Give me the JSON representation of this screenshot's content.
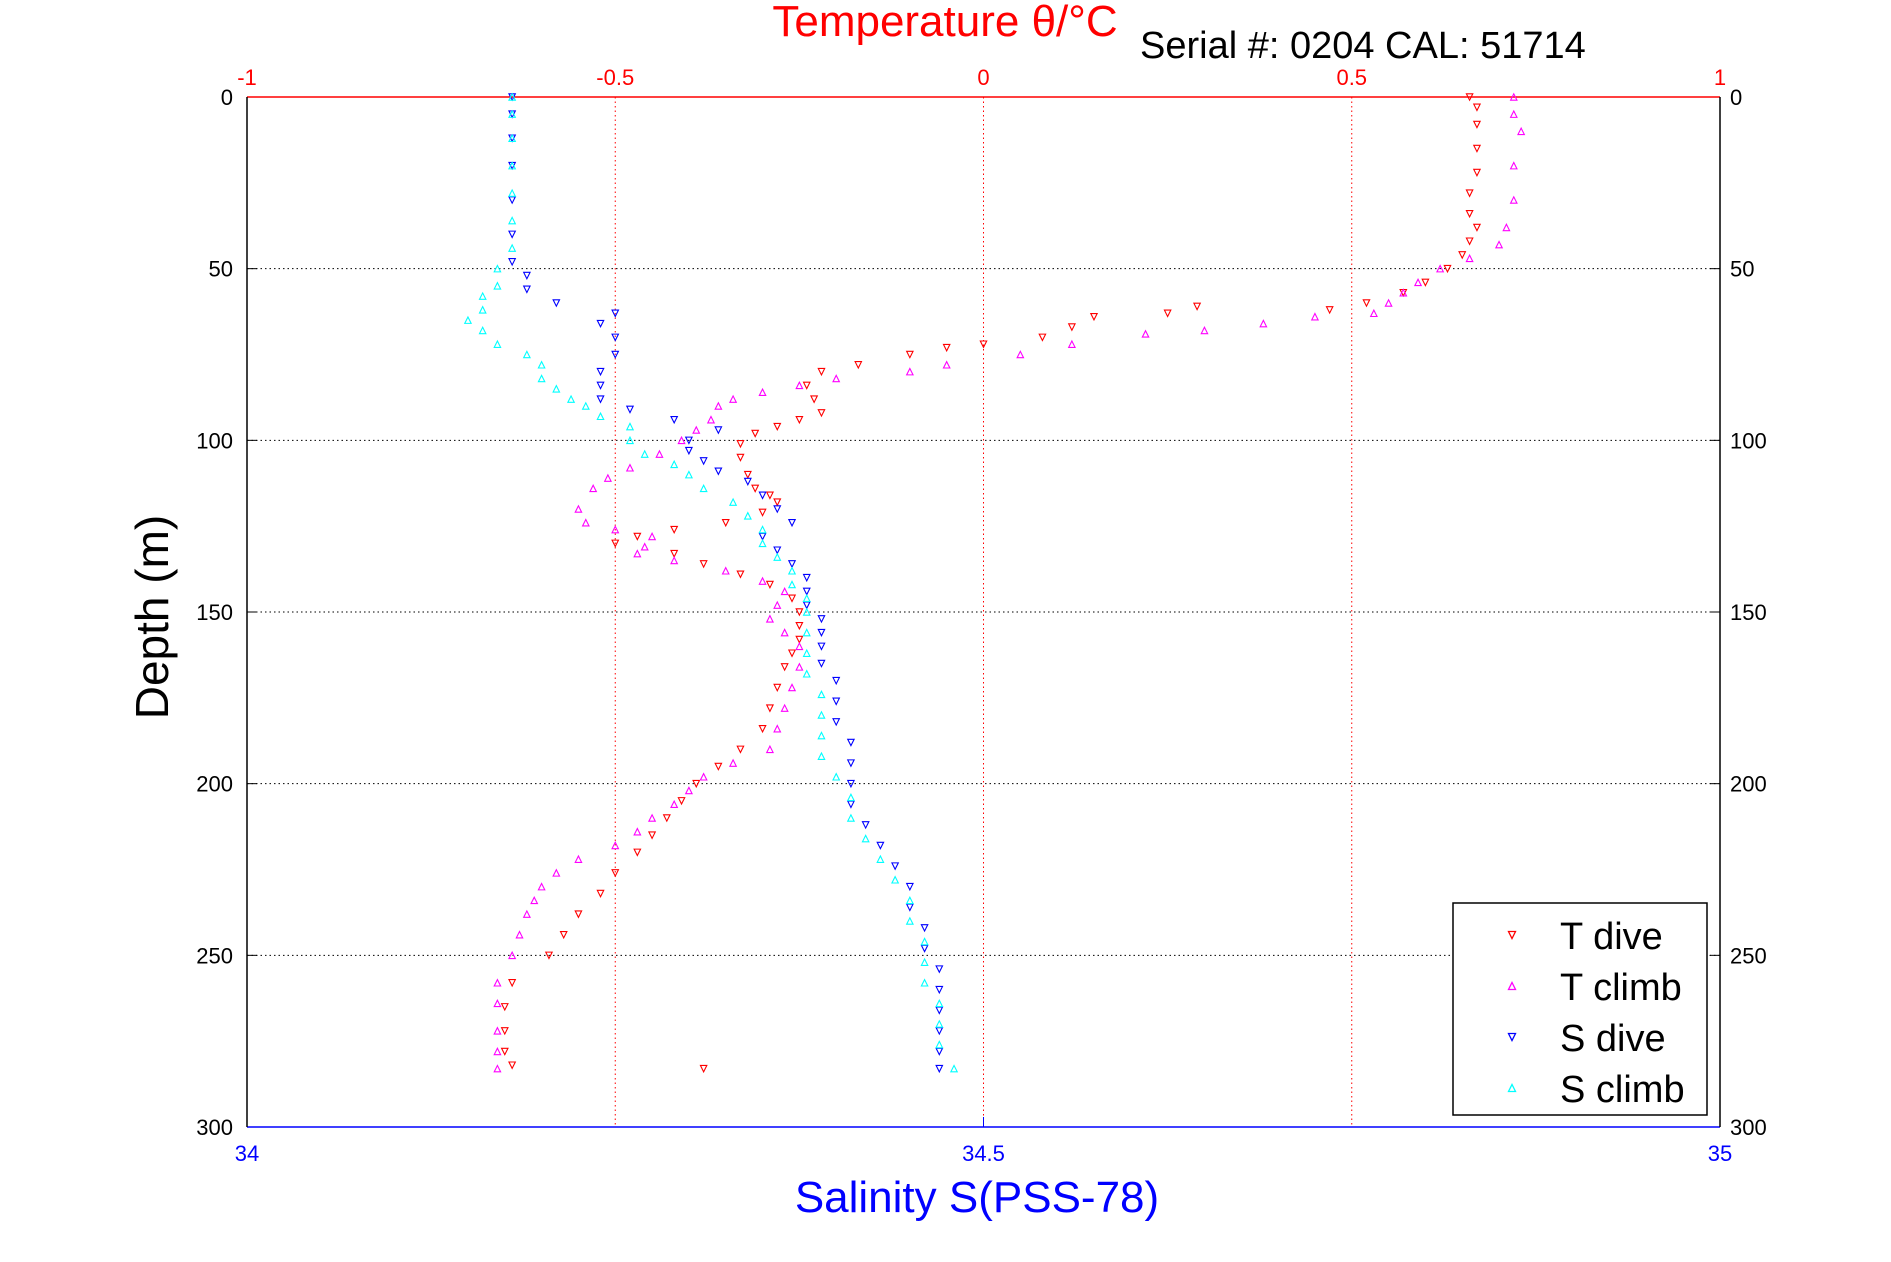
{
  "chart_data": {
    "type": "scatter",
    "title": "Temperature θ/°C",
    "annotation": "Serial #: 0204  CAL: 51714",
    "ylabel": "Depth (m)",
    "xlabel_bottom": "Salinity S(PSS-78)",
    "ylim": [
      0,
      300
    ],
    "y_reversed": true,
    "xlim_temperature": [
      -1,
      1
    ],
    "xlim_salinity": [
      34,
      35
    ],
    "grid": true,
    "legend_position": "bottom-right",
    "y_ticks": [
      "0",
      "50",
      "100",
      "150",
      "200",
      "250",
      "300"
    ],
    "temperature_ticks": [
      "-1",
      "-0.5",
      "0",
      "0.5",
      "1"
    ],
    "salinity_ticks": [
      "34",
      "34.5",
      "35"
    ],
    "colors": {
      "temperature_axis": "#ff0000",
      "salinity_axis": "#0000ff",
      "t_dive": "#ff0000",
      "t_climb": "#ff00ff",
      "s_dive": "#0000ff",
      "s_climb": "#00ffff",
      "grid": "#000000"
    },
    "series": [
      {
        "name": "T dive",
        "axis": "temperature",
        "marker": "triangle-down",
        "points": [
          [
            0.66,
            0
          ],
          [
            0.67,
            3
          ],
          [
            0.67,
            8
          ],
          [
            0.67,
            15
          ],
          [
            0.67,
            22
          ],
          [
            0.66,
            28
          ],
          [
            0.66,
            34
          ],
          [
            0.67,
            38
          ],
          [
            0.66,
            42
          ],
          [
            0.65,
            46
          ],
          [
            0.63,
            50
          ],
          [
            0.6,
            54
          ],
          [
            0.57,
            57
          ],
          [
            0.52,
            60
          ],
          [
            0.47,
            62
          ],
          [
            0.29,
            61
          ],
          [
            0.25,
            63
          ],
          [
            0.15,
            64
          ],
          [
            0.12,
            67
          ],
          [
            0.08,
            70
          ],
          [
            0.0,
            72
          ],
          [
            -0.05,
            73
          ],
          [
            -0.1,
            75
          ],
          [
            -0.17,
            78
          ],
          [
            -0.22,
            80
          ],
          [
            -0.24,
            84
          ],
          [
            -0.23,
            88
          ],
          [
            -0.22,
            92
          ],
          [
            -0.25,
            94
          ],
          [
            -0.28,
            96
          ],
          [
            -0.31,
            98
          ],
          [
            -0.33,
            101
          ],
          [
            -0.33,
            105
          ],
          [
            -0.32,
            110
          ],
          [
            -0.31,
            114
          ],
          [
            -0.29,
            116
          ],
          [
            -0.28,
            118
          ],
          [
            -0.3,
            121
          ],
          [
            -0.35,
            124
          ],
          [
            -0.42,
            126
          ],
          [
            -0.47,
            128
          ],
          [
            -0.5,
            130
          ],
          [
            -0.42,
            133
          ],
          [
            -0.38,
            136
          ],
          [
            -0.33,
            139
          ],
          [
            -0.29,
            142
          ],
          [
            -0.26,
            146
          ],
          [
            -0.25,
            150
          ],
          [
            -0.25,
            154
          ],
          [
            -0.25,
            158
          ],
          [
            -0.26,
            162
          ],
          [
            -0.27,
            166
          ],
          [
            -0.28,
            172
          ],
          [
            -0.29,
            178
          ],
          [
            -0.3,
            184
          ],
          [
            -0.33,
            190
          ],
          [
            -0.36,
            195
          ],
          [
            -0.39,
            200
          ],
          [
            -0.41,
            205
          ],
          [
            -0.43,
            210
          ],
          [
            -0.45,
            215
          ],
          [
            -0.47,
            220
          ],
          [
            -0.5,
            226
          ],
          [
            -0.52,
            232
          ],
          [
            -0.55,
            238
          ],
          [
            -0.57,
            244
          ],
          [
            -0.59,
            250
          ],
          [
            -0.64,
            258
          ],
          [
            -0.65,
            265
          ],
          [
            -0.65,
            272
          ],
          [
            -0.65,
            278
          ],
          [
            -0.64,
            282
          ],
          [
            -0.38,
            283
          ]
        ]
      },
      {
        "name": "T climb",
        "axis": "temperature",
        "marker": "triangle-up",
        "points": [
          [
            0.72,
            0
          ],
          [
            0.72,
            5
          ],
          [
            0.73,
            10
          ],
          [
            0.72,
            20
          ],
          [
            0.72,
            30
          ],
          [
            0.71,
            38
          ],
          [
            0.7,
            43
          ],
          [
            0.66,
            47
          ],
          [
            0.62,
            50
          ],
          [
            0.59,
            54
          ],
          [
            0.57,
            57
          ],
          [
            0.55,
            60
          ],
          [
            0.53,
            63
          ],
          [
            0.45,
            64
          ],
          [
            0.38,
            66
          ],
          [
            0.3,
            68
          ],
          [
            0.22,
            69
          ],
          [
            0.12,
            72
          ],
          [
            0.05,
            75
          ],
          [
            -0.05,
            78
          ],
          [
            -0.1,
            80
          ],
          [
            -0.2,
            82
          ],
          [
            -0.25,
            84
          ],
          [
            -0.3,
            86
          ],
          [
            -0.34,
            88
          ],
          [
            -0.36,
            90
          ],
          [
            -0.37,
            94
          ],
          [
            -0.39,
            97
          ],
          [
            -0.41,
            100
          ],
          [
            -0.44,
            104
          ],
          [
            -0.48,
            108
          ],
          [
            -0.51,
            111
          ],
          [
            -0.53,
            114
          ],
          [
            -0.55,
            120
          ],
          [
            -0.54,
            124
          ],
          [
            -0.5,
            126
          ],
          [
            -0.45,
            128
          ],
          [
            -0.46,
            131
          ],
          [
            -0.47,
            133
          ],
          [
            -0.42,
            135
          ],
          [
            -0.35,
            138
          ],
          [
            -0.3,
            141
          ],
          [
            -0.27,
            144
          ],
          [
            -0.28,
            148
          ],
          [
            -0.29,
            152
          ],
          [
            -0.27,
            156
          ],
          [
            -0.25,
            160
          ],
          [
            -0.25,
            166
          ],
          [
            -0.26,
            172
          ],
          [
            -0.27,
            178
          ],
          [
            -0.28,
            184
          ],
          [
            -0.29,
            190
          ],
          [
            -0.34,
            194
          ],
          [
            -0.38,
            198
          ],
          [
            -0.4,
            202
          ],
          [
            -0.42,
            206
          ],
          [
            -0.45,
            210
          ],
          [
            -0.47,
            214
          ],
          [
            -0.5,
            218
          ],
          [
            -0.55,
            222
          ],
          [
            -0.58,
            226
          ],
          [
            -0.6,
            230
          ],
          [
            -0.61,
            234
          ],
          [
            -0.62,
            238
          ],
          [
            -0.63,
            244
          ],
          [
            -0.64,
            250
          ],
          [
            -0.66,
            258
          ],
          [
            -0.66,
            264
          ],
          [
            -0.66,
            272
          ],
          [
            -0.66,
            278
          ],
          [
            -0.66,
            283
          ]
        ]
      },
      {
        "name": "S dive",
        "axis": "salinity",
        "marker": "triangle-down",
        "points": [
          [
            34.18,
            0
          ],
          [
            34.18,
            5
          ],
          [
            34.18,
            12
          ],
          [
            34.18,
            20
          ],
          [
            34.18,
            30
          ],
          [
            34.18,
            40
          ],
          [
            34.18,
            48
          ],
          [
            34.19,
            52
          ],
          [
            34.19,
            56
          ],
          [
            34.21,
            60
          ],
          [
            34.25,
            63
          ],
          [
            34.24,
            66
          ],
          [
            34.25,
            70
          ],
          [
            34.25,
            75
          ],
          [
            34.24,
            80
          ],
          [
            34.24,
            84
          ],
          [
            34.24,
            88
          ],
          [
            34.26,
            91
          ],
          [
            34.29,
            94
          ],
          [
            34.32,
            97
          ],
          [
            34.3,
            100
          ],
          [
            34.3,
            103
          ],
          [
            34.31,
            106
          ],
          [
            34.32,
            109
          ],
          [
            34.34,
            112
          ],
          [
            34.35,
            116
          ],
          [
            34.36,
            120
          ],
          [
            34.37,
            124
          ],
          [
            34.35,
            128
          ],
          [
            34.36,
            132
          ],
          [
            34.37,
            136
          ],
          [
            34.38,
            140
          ],
          [
            34.38,
            144
          ],
          [
            34.38,
            148
          ],
          [
            34.39,
            152
          ],
          [
            34.39,
            156
          ],
          [
            34.39,
            160
          ],
          [
            34.39,
            165
          ],
          [
            34.4,
            170
          ],
          [
            34.4,
            176
          ],
          [
            34.4,
            182
          ],
          [
            34.41,
            188
          ],
          [
            34.41,
            194
          ],
          [
            34.41,
            200
          ],
          [
            34.41,
            206
          ],
          [
            34.42,
            212
          ],
          [
            34.43,
            218
          ],
          [
            34.44,
            224
          ],
          [
            34.45,
            230
          ],
          [
            34.45,
            236
          ],
          [
            34.46,
            242
          ],
          [
            34.46,
            248
          ],
          [
            34.47,
            254
          ],
          [
            34.47,
            260
          ],
          [
            34.47,
            266
          ],
          [
            34.47,
            272
          ],
          [
            34.47,
            278
          ],
          [
            34.47,
            283
          ]
        ]
      },
      {
        "name": "S climb",
        "axis": "salinity",
        "marker": "triangle-up",
        "points": [
          [
            34.18,
            0
          ],
          [
            34.18,
            5
          ],
          [
            34.18,
            12
          ],
          [
            34.18,
            20
          ],
          [
            34.18,
            28
          ],
          [
            34.18,
            36
          ],
          [
            34.18,
            44
          ],
          [
            34.17,
            50
          ],
          [
            34.17,
            55
          ],
          [
            34.16,
            58
          ],
          [
            34.16,
            62
          ],
          [
            34.15,
            65
          ],
          [
            34.16,
            68
          ],
          [
            34.17,
            72
          ],
          [
            34.19,
            75
          ],
          [
            34.2,
            78
          ],
          [
            34.2,
            82
          ],
          [
            34.21,
            85
          ],
          [
            34.22,
            88
          ],
          [
            34.23,
            90
          ],
          [
            34.24,
            93
          ],
          [
            34.26,
            96
          ],
          [
            34.26,
            100
          ],
          [
            34.27,
            104
          ],
          [
            34.29,
            107
          ],
          [
            34.3,
            110
          ],
          [
            34.31,
            114
          ],
          [
            34.33,
            118
          ],
          [
            34.34,
            122
          ],
          [
            34.35,
            126
          ],
          [
            34.35,
            130
          ],
          [
            34.36,
            134
          ],
          [
            34.37,
            138
          ],
          [
            34.37,
            142
          ],
          [
            34.38,
            146
          ],
          [
            34.38,
            150
          ],
          [
            34.38,
            156
          ],
          [
            34.38,
            162
          ],
          [
            34.38,
            168
          ],
          [
            34.39,
            174
          ],
          [
            34.39,
            180
          ],
          [
            34.39,
            186
          ],
          [
            34.39,
            192
          ],
          [
            34.4,
            198
          ],
          [
            34.41,
            204
          ],
          [
            34.41,
            210
          ],
          [
            34.42,
            216
          ],
          [
            34.43,
            222
          ],
          [
            34.44,
            228
          ],
          [
            34.45,
            234
          ],
          [
            34.45,
            240
          ],
          [
            34.46,
            246
          ],
          [
            34.46,
            252
          ],
          [
            34.46,
            258
          ],
          [
            34.47,
            264
          ],
          [
            34.47,
            270
          ],
          [
            34.47,
            276
          ],
          [
            34.48,
            283
          ]
        ]
      }
    ]
  }
}
